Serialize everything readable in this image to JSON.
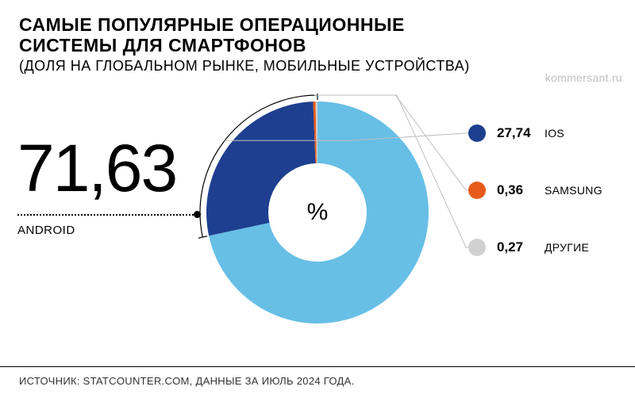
{
  "header": {
    "title_line1": "САМЫЕ ПОПУЛЯРНЫЕ ОПЕРАЦИОННЫЕ",
    "title_line2": "СИСТЕМЫ ДЛЯ СМАРТФОНОВ",
    "subtitle": "(ДОЛЯ НА ГЛОБАЛЬНОМ РЫНКЕ, МОБИЛЬНЫЕ УСТРОЙСТВА)"
  },
  "watermark": "kommersant.ru",
  "chart": {
    "type": "donut",
    "center_label": "%",
    "background_color": "#ffffff",
    "donut_outer_radius": 140,
    "donut_inner_radius": 62,
    "bracket_color": "#000000",
    "bracket_width": 1.2,
    "bracket_gap": 8,
    "leader_color": "#bfbfbf",
    "leader_width": 1,
    "slices": [
      {
        "name": "ANDROID",
        "value": 71.63,
        "value_str": "71,63",
        "color": "#67bfe6",
        "callout": "big"
      },
      {
        "name": "IOS",
        "value": 27.74,
        "value_str": "27,74",
        "color": "#1e3f8f",
        "callout": "legend"
      },
      {
        "name": "SAMSUNG",
        "value": 0.36,
        "value_str": "0,36",
        "color": "#e85a1a",
        "callout": "legend"
      },
      {
        "name": "ДРУГИЕ",
        "value": 0.27,
        "value_str": "0,27",
        "color": "#d1d1d1",
        "callout": "legend"
      }
    ],
    "big_value_fontsize": 84,
    "big_label_fontsize": 15,
    "legend_value_fontsize": 17,
    "legend_name_fontsize": 14
  },
  "footer": {
    "source": "ИСТОЧНИК: STATCOUNTER.COM, ДАННЫЕ ЗА ИЮЛЬ 2024 ГОДА."
  }
}
